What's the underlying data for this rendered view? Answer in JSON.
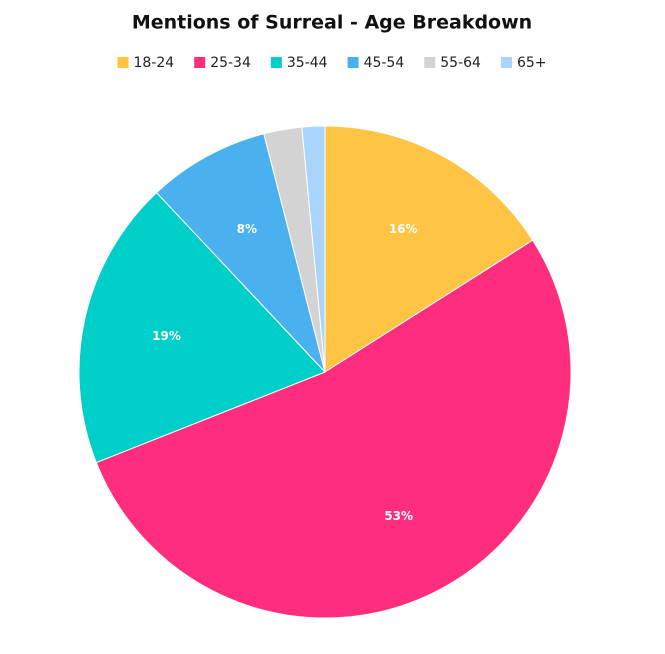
{
  "chart_data": {
    "type": "pie",
    "title": "Mentions of Surreal - Age Breakdown",
    "categories": [
      "18-24",
      "25-34",
      "35-44",
      "45-54",
      "55-64",
      "65+"
    ],
    "values": [
      16,
      53,
      19,
      8,
      2.5,
      1.5
    ],
    "value_labels": [
      "16%",
      "53%",
      "19%",
      "8%",
      null,
      null
    ],
    "colors": [
      "#ffc444",
      "#ff2d7e",
      "#00cec9",
      "#4ab0ee",
      "#d3d3d3",
      "#a9d4fb"
    ],
    "legend": "top"
  }
}
